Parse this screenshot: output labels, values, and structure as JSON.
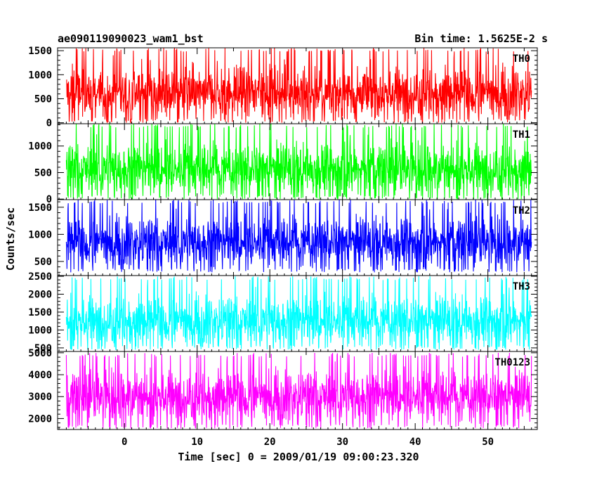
{
  "chart_data": {
    "type": "line",
    "title": "ae090119090023_wam1_bst",
    "subtitle": "Bin time: 1.5625E-2 s",
    "xlabel": "Time [sec] 0 = 2009/01/19 09:00:23.320",
    "ylabel": "Counts/sec",
    "xlim": [
      -9.2,
      56.8
    ],
    "x_data_range": [
      -8,
      56
    ],
    "xticks": [
      0,
      10,
      20,
      30,
      40,
      50
    ],
    "grid": false,
    "panels": [
      {
        "name": "TH0",
        "color": "#ff0000",
        "ylim": [
          -20,
          1560
        ],
        "yticks": [
          0,
          500,
          1000,
          1500
        ],
        "data_min": 0,
        "data_max": 1560,
        "mean": 620
      },
      {
        "name": "TH1",
        "color": "#00ff00",
        "ylim": [
          -10,
          1420
        ],
        "yticks": [
          0,
          500,
          1000
        ],
        "data_min": 0,
        "data_max": 1420,
        "mean": 560
      },
      {
        "name": "TH2",
        "color": "#0000ff",
        "ylim": [
          240,
          1640
        ],
        "yticks": [
          500,
          1000,
          1500
        ],
        "data_min": 300,
        "data_max": 1640,
        "mean": 850
      },
      {
        "name": "TH3",
        "color": "#00ffff",
        "ylim": [
          400,
          2520
        ],
        "yticks": [
          500,
          1000,
          1500,
          2000,
          2500
        ],
        "data_min": 450,
        "data_max": 2500,
        "mean": 1250
      },
      {
        "name": "TH0123",
        "color": "#ff00ff",
        "ylim": [
          1500,
          5060
        ],
        "yticks": [
          2000,
          3000,
          4000,
          5000
        ],
        "data_min": 1550,
        "data_max": 5000,
        "mean": 3000
      }
    ]
  }
}
